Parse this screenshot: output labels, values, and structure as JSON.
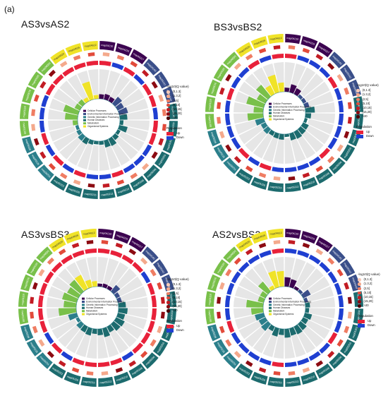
{
  "figure_label": "(a)",
  "colors": {
    "up": "#e8213a",
    "down": "#1f3fd1",
    "cellular": "#3c0450",
    "environmental": "#3a4f8a",
    "genetic": "#2b7f8b",
    "human": "#1c6b6e",
    "metabolism": "#79c04a",
    "organismal": "#f0e328",
    "qscale": [
      "#f7c9b6",
      "#f4a98c",
      "#ef7d63",
      "#e24b3b",
      "#c21c24",
      "#8c0b12",
      "#4a0206"
    ]
  },
  "legend": {
    "q_title": "-log10(Q value)",
    "q_levels": [
      "(0,1.3]",
      "(1.3,2]",
      "(2,5]",
      "(5,10]",
      "(10,15]",
      "(15,20]",
      ">20"
    ],
    "regulation_title": "Regulation",
    "regulation": [
      "Up",
      "Down"
    ],
    "categories": [
      "Cellular Processes",
      "Environmental Information Processing",
      "Genetic Information Processing",
      "Human Diseases",
      "Metabolism",
      "Organismal Systems"
    ]
  },
  "panels": [
    {
      "title": "AS3vsAS2",
      "up_fraction": 0.52
    },
    {
      "title": "BS3vsBS2",
      "up_fraction": 0.35
    },
    {
      "title": "AS3vsBS3",
      "up_fraction": 0.9
    },
    {
      "title": "AS2vsBS2",
      "up_fraction": 0.08
    }
  ],
  "ring_labels": [
    "map04210",
    "map04215",
    "map04217",
    "map04140",
    "map04142",
    "map04144",
    "map04145",
    "map05200",
    "map05202",
    "map05205",
    "map05206",
    "map05208",
    "map05210",
    "map05212",
    "map05215",
    "map05220",
    "map05222",
    "map05224",
    "map05225",
    "map05226",
    "map01100",
    "map01110",
    "map00010",
    "map00020",
    "map00030",
    "map04620",
    "map04625",
    "map04612"
  ]
}
